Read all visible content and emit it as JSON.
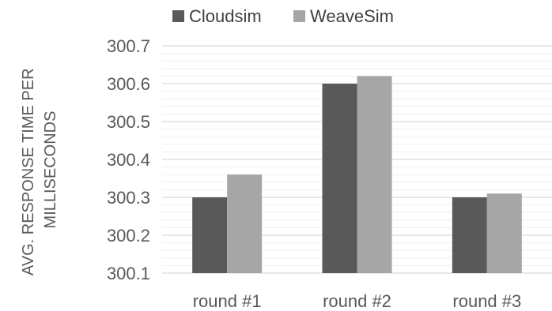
{
  "chart_data": {
    "type": "bar",
    "categories": [
      "round #1",
      "round #2",
      "round #3"
    ],
    "series": [
      {
        "name": "Cloudsim",
        "values": [
          300.3,
          300.6,
          300.3
        ],
        "color": "#595959"
      },
      {
        "name": "WeaveSim",
        "values": [
          300.36,
          300.62,
          300.31
        ],
        "color": "#a6a6a6"
      }
    ],
    "ylabel_lines": [
      "AVG. RESPONSE TIME PER",
      "MILLISECONDS"
    ],
    "ylim": [
      300.1,
      300.7
    ],
    "yticks": [
      "300.1",
      "300.2",
      "300.3",
      "300.4",
      "300.5",
      "300.6",
      "300.7"
    ],
    "grid": true,
    "legend_position": "top-center"
  }
}
